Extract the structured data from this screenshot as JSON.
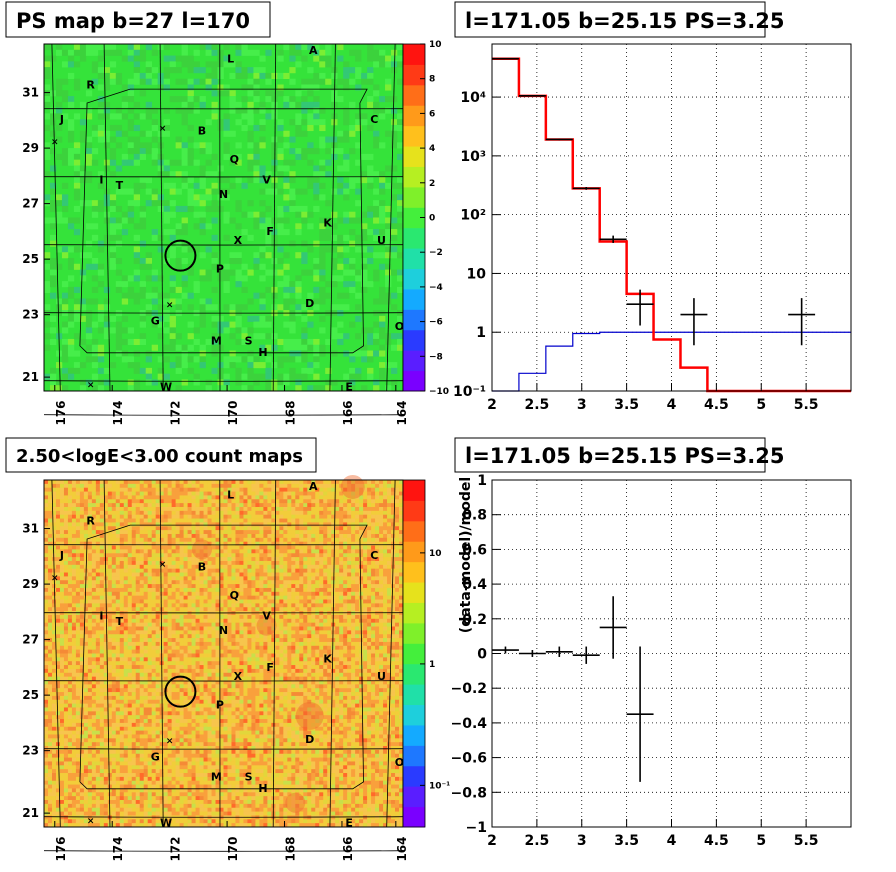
{
  "panels": {
    "tl": {
      "title": "PS map b=27 l=170"
    },
    "tr": {
      "title": "l=171.05 b=25.15 PS=3.25"
    },
    "bl": {
      "title": "2.50<logE<3.00 count maps"
    },
    "br": {
      "title": "l=171.05 b=25.15 PS=3.25"
    }
  },
  "maps": {
    "lon_ticks": [
      "176",
      "174",
      "172",
      "170",
      "168",
      "166",
      "164"
    ],
    "lat_ticks": [
      "31",
      "29",
      "27",
      "25",
      "23",
      "21"
    ],
    "source_labels": [
      "A",
      "L",
      "R",
      "C",
      "J",
      "B",
      "Q",
      "I",
      "T",
      "V",
      "N",
      "K",
      "F",
      "U",
      "X",
      "P",
      "D",
      "G",
      "O",
      "M",
      "S",
      "H",
      "E",
      "W"
    ],
    "ps_colorbar": {
      "ticks": [
        "10",
        "8",
        "6",
        "4",
        "2",
        "0",
        "−2",
        "−4",
        "−6",
        "−8",
        "−10"
      ],
      "range": [
        -10,
        10
      ]
    },
    "count_colorbar": {
      "ticks": [
        "10",
        "1",
        "10⁻¹"
      ]
    },
    "colors": {
      "ps_background": "#33e633",
      "count_background": "#ffb347",
      "circle": "#000000"
    }
  },
  "chart_data": [
    {
      "type": "line",
      "panel": "spectrum",
      "title": "l=171.05 b=25.15 PS=3.25",
      "xlabel": "",
      "ylabel": "",
      "log_y": true,
      "xlim": [
        2,
        6
      ],
      "ylim": [
        0.1,
        80000
      ],
      "grid": true,
      "x_ticks": [
        "2",
        "2.5",
        "3",
        "3.5",
        "4",
        "4.5",
        "5",
        "5.5"
      ],
      "y_ticks": [
        "10⁻¹",
        "1",
        "10",
        "10²",
        "10³",
        "10⁴"
      ],
      "model_total": {
        "color": "#ff0000",
        "edges": [
          2.0,
          2.3,
          2.6,
          2.9,
          3.2,
          3.5,
          3.8,
          4.1,
          4.4,
          6.0
        ],
        "values": [
          45000,
          10500,
          1900,
          280,
          35,
          4.5,
          0.75,
          0.25,
          0.1
        ]
      },
      "model_background": {
        "color": "#0000cc",
        "edges": [
          2.0,
          2.3,
          2.6,
          2.9,
          3.2,
          3.5,
          6.0
        ],
        "values": [
          0.07,
          0.2,
          0.58,
          0.95,
          1.0,
          1.0
        ]
      },
      "data_points": [
        {
          "x": 2.15,
          "xerr": 0.15,
          "y": 45000,
          "ylo": 44000,
          "yhi": 46000
        },
        {
          "x": 2.45,
          "xerr": 0.15,
          "y": 10500,
          "ylo": 10300,
          "yhi": 10700
        },
        {
          "x": 2.75,
          "xerr": 0.15,
          "y": 1900,
          "ylo": 1850,
          "yhi": 1950
        },
        {
          "x": 3.05,
          "xerr": 0.15,
          "y": 280,
          "ylo": 265,
          "yhi": 295
        },
        {
          "x": 3.35,
          "xerr": 0.15,
          "y": 38,
          "ylo": 33,
          "yhi": 44
        },
        {
          "x": 3.65,
          "xerr": 0.15,
          "y": 3,
          "ylo": 1.3,
          "yhi": 5.3
        },
        {
          "x": 4.25,
          "xerr": 0.15,
          "y": 2,
          "ylo": 0.6,
          "yhi": 3.8
        },
        {
          "x": 5.45,
          "xerr": 0.15,
          "y": 2,
          "ylo": 0.6,
          "yhi": 3.8
        }
      ]
    },
    {
      "type": "scatter",
      "panel": "residuals",
      "title": "l=171.05 b=25.15 PS=3.25",
      "xlabel": "",
      "ylabel": "(data-model)/model",
      "xlim": [
        2,
        6
      ],
      "ylim": [
        -1,
        1
      ],
      "grid": true,
      "x_ticks": [
        "2",
        "2.5",
        "3",
        "3.5",
        "4",
        "4.5",
        "5",
        "5.5"
      ],
      "y_ticks": [
        "−1",
        "−0.8",
        "−0.6",
        "−0.4",
        "−0.2",
        "0",
        "0.2",
        "0.4",
        "0.6",
        "0.8",
        "1"
      ],
      "points": [
        {
          "x": 2.15,
          "xerr": 0.15,
          "y": 0.02,
          "yerr": 0.02
        },
        {
          "x": 2.45,
          "xerr": 0.15,
          "y": 0.0,
          "yerr": 0.02
        },
        {
          "x": 2.75,
          "xerr": 0.15,
          "y": 0.01,
          "yerr": 0.03
        },
        {
          "x": 3.05,
          "xerr": 0.15,
          "y": -0.01,
          "yerr": 0.05
        },
        {
          "x": 3.35,
          "xerr": 0.15,
          "y": 0.15,
          "yerr": 0.18
        },
        {
          "x": 3.65,
          "xerr": 0.15,
          "y": -0.35,
          "yerr": 0.39
        }
      ]
    }
  ]
}
